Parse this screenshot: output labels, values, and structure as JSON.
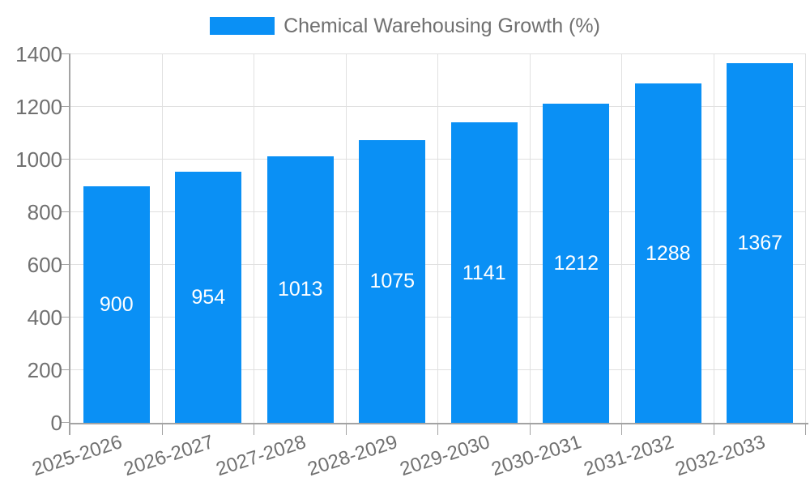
{
  "chart_data": {
    "type": "bar",
    "title": "Chemical Warehousing Growth (%)",
    "categories": [
      "2025-2026",
      "2026-2027",
      "2027-2028",
      "2028-2029",
      "2029-2030",
      "2030-2031",
      "2031-2032",
      "2032-2033"
    ],
    "series": [
      {
        "name": "Chemical Warehousing Growth (%)",
        "values": [
          900,
          954,
          1013,
          1075,
          1141,
          1212,
          1288,
          1367
        ]
      }
    ],
    "value_labels": [
      "900",
      "954",
      "1013",
      "1075",
      "1141",
      "1212",
      "1288",
      "1367"
    ],
    "xlabel": "",
    "ylabel": "",
    "ylim": [
      0,
      1400
    ],
    "yticks": [
      0,
      200,
      400,
      600,
      800,
      1000,
      1200,
      1400
    ],
    "grid": true,
    "legend_position": "top",
    "colors": {
      "bar": "#0a90f5",
      "value_label": "#ffffff",
      "axis_label": "#707070",
      "grid_line": "#e0e0e0",
      "axis_line": "#a3a3a3"
    }
  }
}
